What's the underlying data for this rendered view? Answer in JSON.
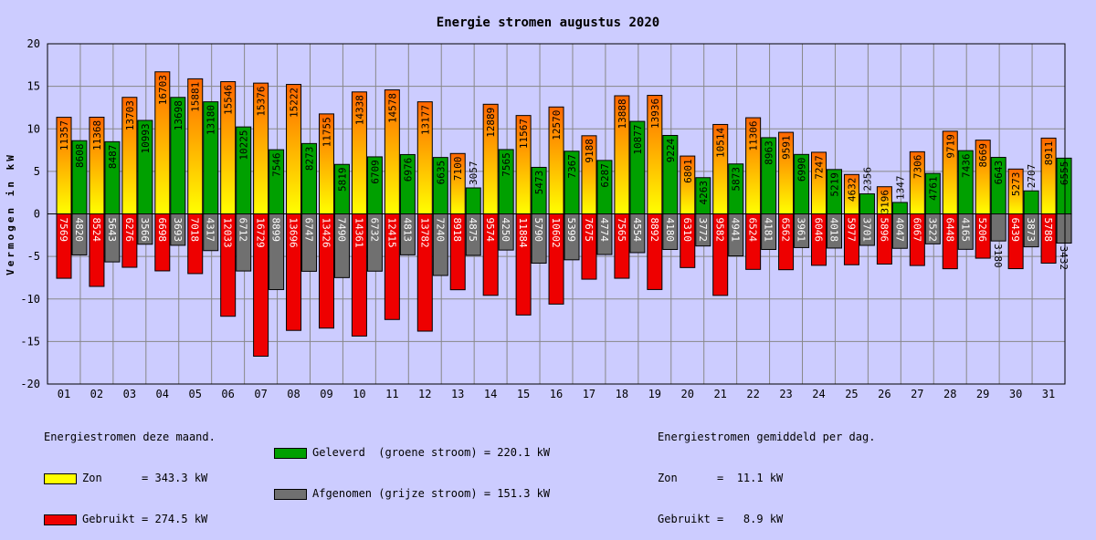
{
  "colors": {
    "background": "#ccccff",
    "zon_gradient_top": "#ff6600",
    "zon_gradient_bottom": "#ffff00",
    "geleverd": "#00a000",
    "gebruikt": "#ee0000",
    "afgenomen": "#707070",
    "grid": "#888888"
  },
  "chart_data": {
    "type": "bar",
    "title": "Energie stromen augustus 2020",
    "ylabel": "Vermogen in kW",
    "xlabel": "",
    "ylim": [
      -20,
      20
    ],
    "yticks": [
      20,
      15,
      10,
      5,
      0,
      -5,
      -10,
      -15,
      -20
    ],
    "categories": [
      "01",
      "02",
      "03",
      "04",
      "05",
      "06",
      "07",
      "08",
      "09",
      "10",
      "11",
      "12",
      "13",
      "14",
      "15",
      "16",
      "17",
      "18",
      "19",
      "20",
      "21",
      "22",
      "23",
      "24",
      "25",
      "26",
      "27",
      "28",
      "29",
      "30",
      "31"
    ],
    "series": [
      {
        "name": "Zon",
        "color_key": "zon",
        "values": [
          11357,
          11368,
          13703,
          16703,
          15881,
          15546,
          15376,
          15222,
          11755,
          14338,
          14578,
          13177,
          7100,
          12889,
          11567,
          12570,
          9188,
          13888,
          13936,
          6801,
          10514,
          11306,
          9591,
          7247,
          4632,
          3196,
          7306,
          9719,
          8669,
          5273,
          8911
        ]
      },
      {
        "name": "Geleverd",
        "color_key": "geleverd",
        "values": [
          8608,
          8487,
          10993,
          13698,
          13180,
          10225,
          7546,
          8273,
          5819,
          6709,
          6976,
          6635,
          3057,
          7565,
          5473,
          7367,
          6287,
          10877,
          9224,
          4263,
          5873,
          8963,
          6990,
          5219,
          2356,
          1347,
          4761,
          7436,
          6643,
          2707,
          6555
        ]
      },
      {
        "name": "Gebruikt",
        "color_key": "gebruikt",
        "values": [
          7569,
          8524,
          6276,
          6698,
          7018,
          12033,
          16729,
          13696,
          13426,
          14361,
          12415,
          13782,
          8918,
          9574,
          11884,
          10602,
          7675,
          7565,
          8892,
          6310,
          9582,
          6524,
          6562,
          6046,
          5977,
          5896,
          6067,
          6448,
          5206,
          6439,
          5788
        ]
      },
      {
        "name": "Afgenomen",
        "color_key": "afgenomen",
        "values": [
          4820,
          5643,
          3566,
          3693,
          4317,
          6712,
          8899,
          6747,
          7490,
          6732,
          4813,
          7240,
          4875,
          4250,
          5790,
          5399,
          4774,
          4554,
          4180,
          3772,
          4941,
          4181,
          3961,
          4018,
          3701,
          4047,
          3522,
          4165,
          3180,
          3873,
          3432
        ]
      }
    ]
  },
  "legend": {
    "left_heading": "Energiestromen deze maand.",
    "zon": "Zon      = 343.3 kW",
    "gebruikt": "Gebruikt = 274.5 kW",
    "geleverd": "Geleverd  (groene stroom) = 220.1 kW",
    "afgenomen": "Afgenomen (grijze stroom) = 151.3 kW",
    "right_heading": "Energiestromen gemiddeld per dag.",
    "avg_zon": "Zon      =  11.1 kW",
    "avg_gebruikt": "Gebruikt =   8.9 kW"
  }
}
